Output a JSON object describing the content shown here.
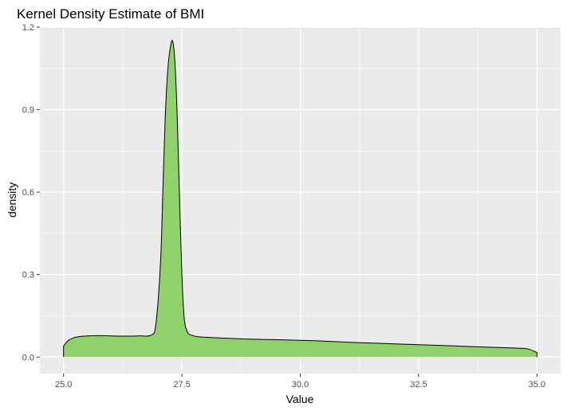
{
  "chart_data": {
    "type": "area",
    "title": "Kernel Density Estimate of BMI",
    "xlabel": "Value",
    "ylabel": "density",
    "xlim": [
      25.0,
      35.0
    ],
    "ylim": [
      0.0,
      1.2
    ],
    "x_ticks": [
      "25.0",
      "27.5",
      "30.0",
      "32.5",
      "35.0"
    ],
    "y_ticks": [
      "0.0",
      "0.3",
      "0.6",
      "0.9",
      "1.2"
    ],
    "grid": true,
    "legend": "none",
    "colors": {
      "panel_background": "#ebebeb",
      "grid": "#ffffff",
      "fill": "#8fd16b",
      "outline": "#000000"
    },
    "series": [
      {
        "x": [
          25.0,
          25.1,
          25.25,
          25.5,
          25.75,
          26.0,
          26.3,
          26.6,
          26.85,
          26.95,
          27.05,
          27.1,
          27.15,
          27.2,
          27.25,
          27.3,
          27.35,
          27.4,
          27.45,
          27.5,
          27.55,
          27.62,
          27.7,
          27.8,
          28.0,
          28.5,
          29.0,
          29.5,
          30.0,
          30.5,
          31.0,
          31.5,
          32.0,
          32.5,
          33.0,
          33.5,
          34.0,
          34.5,
          34.8,
          35.0
        ],
        "y": [
          0.04,
          0.06,
          0.072,
          0.077,
          0.078,
          0.077,
          0.076,
          0.077,
          0.08,
          0.12,
          0.35,
          0.62,
          0.88,
          1.04,
          1.12,
          1.15,
          1.08,
          0.88,
          0.58,
          0.3,
          0.14,
          0.09,
          0.08,
          0.075,
          0.072,
          0.068,
          0.065,
          0.063,
          0.061,
          0.058,
          0.054,
          0.051,
          0.048,
          0.045,
          0.042,
          0.039,
          0.036,
          0.033,
          0.03,
          0.016
        ]
      }
    ]
  }
}
